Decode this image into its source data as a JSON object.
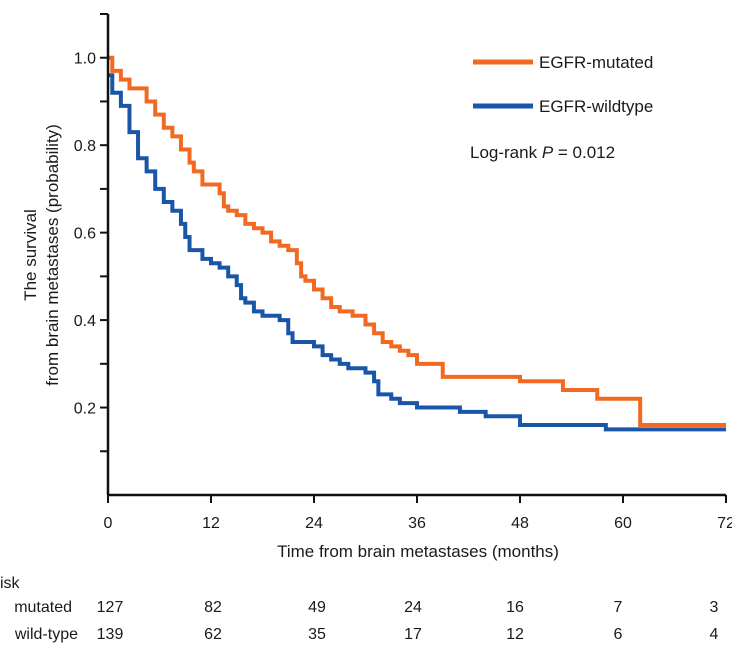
{
  "chart_data": {
    "type": "line",
    "title": "",
    "xlabel": "Time from brain metastases (months)",
    "ylabel_line1": "The survival",
    "ylabel_line2": "from brain metastases (probability)",
    "xlim": [
      0,
      72
    ],
    "ylim": [
      0,
      1.1
    ],
    "xticks": [
      0,
      12,
      24,
      36,
      48,
      60,
      72
    ],
    "yticks": [
      0.2,
      0.4,
      0.6,
      0.8,
      1.0
    ],
    "ytick_labels": [
      "0.2",
      "0.4",
      "0.6",
      "0.8",
      "1.0"
    ],
    "grid": false,
    "legend_position": "top-right",
    "annotation_prefix": "Log-rank ",
    "annotation_italic": "P",
    "annotation_suffix": " = 0.012",
    "series": [
      {
        "name": "EGFR-mutated",
        "color": "#f26a21",
        "steps": [
          [
            0,
            1.0
          ],
          [
            0.5,
            0.97
          ],
          [
            1.5,
            0.95
          ],
          [
            2.5,
            0.93
          ],
          [
            4.5,
            0.9
          ],
          [
            5.5,
            0.87
          ],
          [
            6.5,
            0.84
          ],
          [
            7.5,
            0.82
          ],
          [
            8.5,
            0.79
          ],
          [
            9.5,
            0.76
          ],
          [
            10,
            0.74
          ],
          [
            11,
            0.71
          ],
          [
            13,
            0.69
          ],
          [
            13.5,
            0.66
          ],
          [
            14,
            0.65
          ],
          [
            15,
            0.64
          ],
          [
            16,
            0.62
          ],
          [
            17,
            0.61
          ],
          [
            18,
            0.6
          ],
          [
            19,
            0.58
          ],
          [
            20,
            0.57
          ],
          [
            21,
            0.56
          ],
          [
            22,
            0.53
          ],
          [
            22.5,
            0.5
          ],
          [
            23,
            0.49
          ],
          [
            24,
            0.47
          ],
          [
            25,
            0.45
          ],
          [
            26,
            0.43
          ],
          [
            27,
            0.42
          ],
          [
            28.5,
            0.41
          ],
          [
            30,
            0.39
          ],
          [
            31,
            0.37
          ],
          [
            32,
            0.35
          ],
          [
            33,
            0.34
          ],
          [
            34,
            0.33
          ],
          [
            35,
            0.32
          ],
          [
            36,
            0.3
          ],
          [
            39,
            0.27
          ],
          [
            48,
            0.26
          ],
          [
            53,
            0.24
          ],
          [
            57,
            0.22
          ],
          [
            62,
            0.16
          ],
          [
            72,
            0.16
          ]
        ]
      },
      {
        "name": "EGFR-wildtype",
        "color": "#1a56a8",
        "steps": [
          [
            0,
            0.96
          ],
          [
            0.5,
            0.92
          ],
          [
            1.5,
            0.89
          ],
          [
            2.5,
            0.83
          ],
          [
            3.5,
            0.77
          ],
          [
            4.5,
            0.74
          ],
          [
            5.5,
            0.7
          ],
          [
            6.5,
            0.67
          ],
          [
            7.5,
            0.65
          ],
          [
            8.5,
            0.62
          ],
          [
            9,
            0.59
          ],
          [
            9.5,
            0.56
          ],
          [
            11,
            0.54
          ],
          [
            12,
            0.53
          ],
          [
            13,
            0.52
          ],
          [
            14,
            0.5
          ],
          [
            15,
            0.48
          ],
          [
            15.5,
            0.45
          ],
          [
            16,
            0.44
          ],
          [
            17,
            0.42
          ],
          [
            18,
            0.41
          ],
          [
            20,
            0.4
          ],
          [
            21,
            0.37
          ],
          [
            21.5,
            0.35
          ],
          [
            24,
            0.34
          ],
          [
            25,
            0.32
          ],
          [
            26,
            0.31
          ],
          [
            27,
            0.3
          ],
          [
            28,
            0.29
          ],
          [
            30,
            0.28
          ],
          [
            31,
            0.26
          ],
          [
            31.5,
            0.23
          ],
          [
            33,
            0.22
          ],
          [
            34,
            0.21
          ],
          [
            36,
            0.2
          ],
          [
            41,
            0.19
          ],
          [
            44,
            0.18
          ],
          [
            48,
            0.16
          ],
          [
            52,
            0.16
          ],
          [
            58,
            0.15
          ],
          [
            72,
            0.15
          ]
        ]
      }
    ],
    "risk_table": {
      "header": "isk",
      "rows": [
        {
          "label": "mutated",
          "values": [
            "127",
            "82",
            "49",
            "24",
            "16",
            "7",
            "3"
          ]
        },
        {
          "label": "wild-type",
          "values": [
            "139",
            "62",
            "35",
            "17",
            "12",
            "6",
            "4"
          ]
        }
      ]
    }
  }
}
